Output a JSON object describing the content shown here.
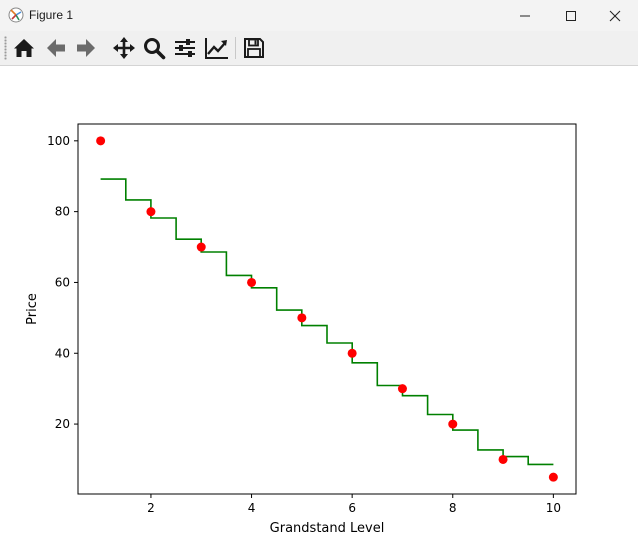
{
  "window": {
    "title": "Figure 1",
    "controls": [
      "minimize",
      "maximize",
      "close"
    ]
  },
  "toolbar": {
    "buttons": [
      {
        "name": "home",
        "icon": "home-icon"
      },
      {
        "name": "back",
        "icon": "arrow-left-icon"
      },
      {
        "name": "forward",
        "icon": "arrow-right-icon"
      },
      {
        "name": "pan",
        "icon": "move-icon"
      },
      {
        "name": "zoom",
        "icon": "magnifier-icon"
      },
      {
        "name": "subplots",
        "icon": "sliders-icon"
      },
      {
        "name": "edit-axes",
        "icon": "line-chart-icon"
      },
      {
        "name": "save",
        "icon": "floppy-disk-icon"
      }
    ]
  },
  "chart_data": {
    "type": "scatter",
    "xlabel": "Grandstand Level",
    "ylabel": "Price",
    "xlim": [
      0.55,
      10.45
    ],
    "ylim": [
      0.25,
      104.75
    ],
    "xticks": [
      2,
      4,
      6,
      8,
      10
    ],
    "yticks": [
      20,
      40,
      60,
      80,
      100
    ],
    "grid": false,
    "series": [
      {
        "kind": "scatter",
        "color": "#ff0000",
        "x": [
          1,
          2,
          3,
          4,
          5,
          6,
          7,
          8,
          9,
          10
        ],
        "y": [
          100,
          80,
          70,
          60,
          50,
          40,
          30,
          20,
          10,
          5
        ]
      },
      {
        "kind": "step",
        "color": "#008000",
        "x": [
          1,
          1.5,
          1.5,
          2,
          2,
          2.5,
          2.5,
          3,
          3,
          3.5,
          3.5,
          4,
          4,
          4.5,
          4.5,
          5,
          5,
          5.5,
          5.5,
          6,
          6,
          6.5,
          6.5,
          7,
          7,
          7.5,
          7.5,
          8,
          8,
          8.5,
          8.5,
          9,
          9,
          9.5,
          9.5,
          10
        ],
        "y": [
          89.2,
          89.2,
          83.3,
          83.3,
          78.2,
          78.2,
          72.2,
          72.2,
          68.6,
          68.6,
          62.0,
          62.0,
          58.5,
          58.5,
          52.2,
          52.2,
          47.8,
          47.8,
          42.9,
          42.9,
          37.3,
          37.3,
          30.9,
          30.9,
          28.0,
          28.0,
          22.7,
          22.7,
          18.3,
          18.3,
          12.7,
          12.7,
          10.8,
          10.8,
          8.6,
          8.6
        ]
      }
    ]
  }
}
